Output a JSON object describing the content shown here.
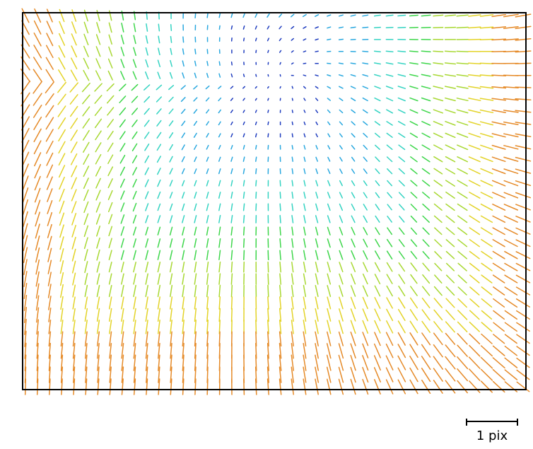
{
  "diagram": {
    "type": "vector-field",
    "scale_bar": {
      "label": "1 pix"
    },
    "colormap": [
      "#1f3dbf",
      "#2aa8df",
      "#34d3c2",
      "#3dd64a",
      "#a8d832",
      "#e3d328",
      "#e58a28",
      "#d9332b"
    ]
  }
}
